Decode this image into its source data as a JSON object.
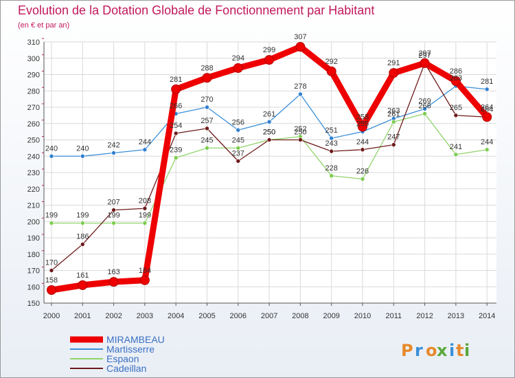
{
  "header": {
    "title": "Evolution de la Dotation Globale de Fonctionnement par Habitant",
    "subtitle": "(en € et par an)"
  },
  "brand": {
    "letters": [
      "P",
      "r",
      "o",
      "x",
      "i",
      "t",
      "i"
    ],
    "colors": [
      "#e8892a",
      "#3a8fd8",
      "#e8892a",
      "#5aa83a",
      "#3a8fd8",
      "#e8892a",
      "#5aa83a"
    ]
  },
  "colors": {
    "title": "#c2185b",
    "axis": "#555555",
    "grid": "#d9d9d9",
    "border": "#999999",
    "legend_text": "#3a6fc2"
  },
  "chart_data": {
    "type": "line",
    "title": "Evolution de la Dotation Globale de Fonctionnement par Habitant",
    "subtitle": "(en € et par an)",
    "xlabel": "",
    "ylabel": "",
    "ylim": [
      150,
      310
    ],
    "ytick_step": 10,
    "grid": true,
    "legend_position": "bottom-left",
    "x": [
      "2000",
      "2001",
      "2002",
      "2003",
      "2004",
      "2005",
      "2006",
      "2007",
      "2008",
      "2009",
      "2010",
      "2011",
      "2012",
      "2013",
      "2014"
    ],
    "series": [
      {
        "name": "Martisserre",
        "color": "#3a8fd8",
        "marker": "#2f7fd0",
        "emphasis": false,
        "values": [
          240,
          240,
          242,
          244,
          266,
          270,
          256,
          261,
          278,
          251,
          255,
          263,
          269,
          283,
          281
        ],
        "labels": [
          "240",
          "240",
          "242",
          "244",
          "266",
          "270",
          "256",
          "261",
          "278",
          "251",
          "255",
          "263",
          "269",
          "283",
          "281"
        ]
      },
      {
        "name": "Espaon",
        "color": "#8fd46a",
        "marker": "#7dcc4f",
        "emphasis": false,
        "values": [
          199,
          199,
          199,
          199,
          239,
          245,
          245,
          250,
          252,
          228,
          226,
          261,
          266,
          241,
          244
        ],
        "labels": [
          "199",
          "199",
          "199",
          "199",
          "239",
          "245",
          "245",
          "250",
          "252",
          "228",
          "226",
          "261",
          "266",
          "241",
          "244"
        ]
      },
      {
        "name": "Cadeillan",
        "color": "#6e1a1a",
        "marker": "#6e1a1a",
        "emphasis": false,
        "values": [
          170,
          186,
          207,
          208,
          254,
          257,
          237,
          250,
          250,
          243,
          244,
          247,
          297,
          265,
          264
        ],
        "labels": [
          "170",
          "186",
          "207",
          "208",
          "254",
          "257",
          "237",
          "250",
          "250",
          "243",
          "244",
          "247",
          "297",
          "265",
          "264"
        ]
      },
      {
        "name": "MIRAMBEAU",
        "color": "#ee0000",
        "marker": "#ee0000",
        "emphasis": true,
        "values": [
          158,
          161,
          163,
          164,
          281,
          288,
          294,
          299,
          307,
          292,
          258,
          291,
          297,
          286,
          264
        ],
        "labels": [
          "158",
          "161",
          "163",
          "164",
          "281",
          "288",
          "294",
          "299",
          "307",
          "292",
          "258",
          "291",
          "297",
          "286",
          "264"
        ]
      }
    ],
    "legend": [
      "MIRAMBEAU",
      "Martisserre",
      "Espaon",
      "Cadeillan"
    ]
  }
}
